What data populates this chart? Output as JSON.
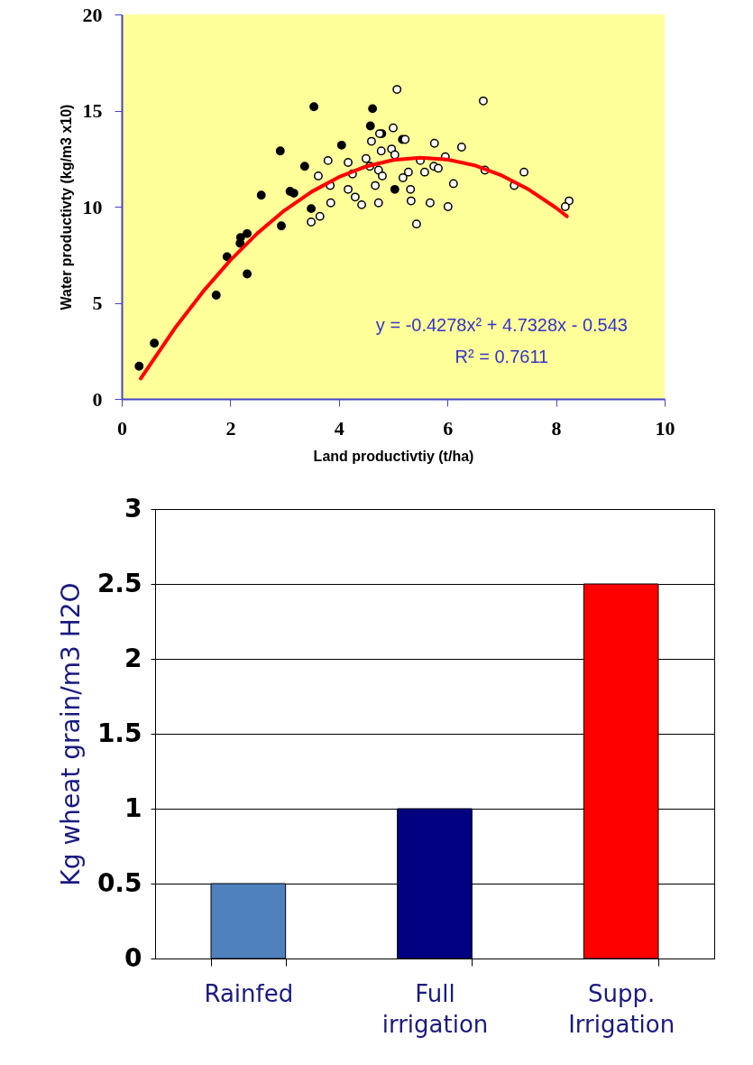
{
  "chart_data": [
    {
      "type": "scatter",
      "xlabel": "Land productivtiy (t/ha)",
      "ylabel": "Water productivty (kg/m3 x10)",
      "xlim": [
        0,
        10
      ],
      "xticks": [
        0,
        2,
        4,
        6,
        8,
        10
      ],
      "ylim": [
        0,
        20
      ],
      "yticks": [
        0,
        5,
        10,
        15,
        20
      ],
      "series": [
        {
          "color": "#000000",
          "marker": "circle",
          "x": [
            0.32,
            0.6,
            1.74,
            1.94,
            2.19,
            2.18,
            2.31,
            2.31,
            2.57,
            2.94,
            2.92,
            3.1,
            3.17,
            3.37,
            3.49,
            3.54,
            4.05,
            4.62,
            4.58,
            4.79,
            5.03,
            5.17
          ],
          "values": [
            1.7,
            2.9,
            5.4,
            7.4,
            8.4,
            8.1,
            8.6,
            6.5,
            10.6,
            9.0,
            12.9,
            10.8,
            10.7,
            12.1,
            9.9,
            15.2,
            13.2,
            15.1,
            14.2,
            13.8,
            10.9,
            13.5
          ]
        },
        {
          "color": "#ffffff",
          "marker": "circle",
          "x": [
            5.07,
            6.66,
            5.0,
            4.75,
            5.22,
            4.6,
            5.76,
            6.26,
            4.78,
            4.97,
            5.03,
            4.5,
            3.8,
            4.17,
            5.5,
            5.96,
            4.57,
            5.75,
            5.83,
            4.73,
            6.69,
            7.41,
            5.58,
            5.28,
            4.25,
            3.62,
            4.8,
            5.18,
            3.84,
            4.67,
            6.11,
            7.23,
            4.17,
            5.32,
            4.3,
            3.85,
            4.42,
            4.73,
            5.33,
            5.68,
            6.01,
            3.65,
            3.49,
            5.43,
            8.24,
            8.17
          ],
          "values": [
            16.1,
            15.5,
            14.1,
            13.8,
            13.5,
            13.4,
            13.3,
            13.1,
            12.9,
            13.0,
            12.7,
            12.5,
            12.4,
            12.3,
            12.4,
            12.6,
            12.1,
            12.1,
            12.0,
            11.9,
            11.9,
            11.8,
            11.8,
            11.8,
            11.7,
            11.6,
            11.6,
            11.5,
            11.1,
            11.1,
            11.2,
            11.1,
            10.9,
            10.9,
            10.5,
            10.2,
            10.1,
            10.2,
            10.3,
            10.2,
            10.0,
            9.5,
            9.2,
            9.1,
            10.3,
            10.0
          ]
        },
        {
          "type": "line",
          "color": "#ff0000",
          "marker": "none",
          "x": [
            0.35,
            1,
            1.5,
            2,
            2.5,
            3,
            3.5,
            4,
            4.5,
            5,
            5.5,
            6,
            6.5,
            7,
            7.5,
            8,
            8.2
          ],
          "values": [
            1.06,
            3.76,
            5.59,
            7.21,
            8.62,
            9.81,
            10.78,
            11.54,
            12.09,
            12.43,
            12.55,
            12.45,
            12.15,
            11.62,
            10.89,
            9.94,
            9.5
          ]
        }
      ],
      "annotations": [
        "y = -0.4278x² + 4.7328x - 0.543",
        "R² = 0.7611"
      ]
    },
    {
      "type": "bar",
      "ylabel": "Kg wheat grain/m3 H2O",
      "categories": [
        "Rainfed",
        "Full irrigation",
        "Supp. Irrigation"
      ],
      "values": [
        0.5,
        1,
        2.5
      ],
      "colors": [
        "#4f81bd",
        "#000080",
        "#ff0000"
      ],
      "ylim": [
        0,
        3
      ],
      "yticks": [
        0,
        0.5,
        1,
        1.5,
        2,
        2.5,
        3
      ],
      "grid": "y"
    }
  ]
}
